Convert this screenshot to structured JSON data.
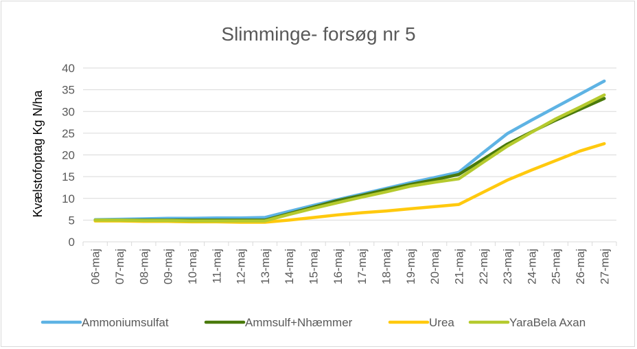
{
  "chart_data": {
    "type": "line",
    "title": "Slimminge- forsøg nr 5",
    "xlabel": "",
    "ylabel": "Kvælstofoptag Kg N/ha",
    "ylim": [
      0,
      40
    ],
    "yticks": [
      "0",
      "5",
      "10",
      "15",
      "20",
      "25",
      "30",
      "35",
      "40"
    ],
    "grid": true,
    "legend_position": "bottom",
    "categories": [
      "06-maj",
      "07-maj",
      "08-maj",
      "09-maj",
      "10-maj",
      "11-maj",
      "12-maj",
      "13-maj",
      "14-maj",
      "15-maj",
      "16-maj",
      "17-maj",
      "18-maj",
      "19-maj",
      "20-maj",
      "21-maj",
      "22-maj",
      "23-maj",
      "24-maj",
      "25-maj",
      "26-maj",
      "27-maj"
    ],
    "series": [
      {
        "name": "Ammoniumsulfat",
        "color": "#5eb3e4",
        "values": [
          5.1,
          5.2,
          5.3,
          5.4,
          5.4,
          5.5,
          5.5,
          5.6,
          7.0,
          8.4,
          9.7,
          11.0,
          12.3,
          13.6,
          14.8,
          16.0,
          20.5,
          24.9,
          28.0,
          31.0,
          34.0,
          37.0
        ]
      },
      {
        "name": "Ammsulf+Nhæmmer",
        "color": "#4a7a0c",
        "values": [
          5.0,
          5.0,
          5.0,
          5.0,
          5.0,
          5.0,
          5.0,
          5.0,
          6.5,
          8.0,
          9.5,
          10.7,
          12.0,
          13.2,
          14.3,
          15.5,
          19.0,
          22.5,
          25.3,
          28.0,
          30.5,
          33.0
        ]
      },
      {
        "name": "Urea",
        "color": "#ffc90e",
        "values": [
          4.8,
          4.8,
          4.7,
          4.7,
          4.6,
          4.6,
          4.5,
          4.5,
          5.0,
          5.6,
          6.2,
          6.7,
          7.1,
          7.6,
          8.1,
          8.6,
          11.4,
          14.2,
          16.5,
          18.7,
          20.9,
          22.6
        ]
      },
      {
        "name": "YaraBela Axan",
        "color": "#b5ca2e",
        "values": [
          5.0,
          5.0,
          4.9,
          4.9,
          4.8,
          4.8,
          4.8,
          4.8,
          6.3,
          7.7,
          9.0,
          10.3,
          11.5,
          12.8,
          13.7,
          14.5,
          18.3,
          22.0,
          25.2,
          28.3,
          31.0,
          33.8
        ]
      }
    ]
  }
}
